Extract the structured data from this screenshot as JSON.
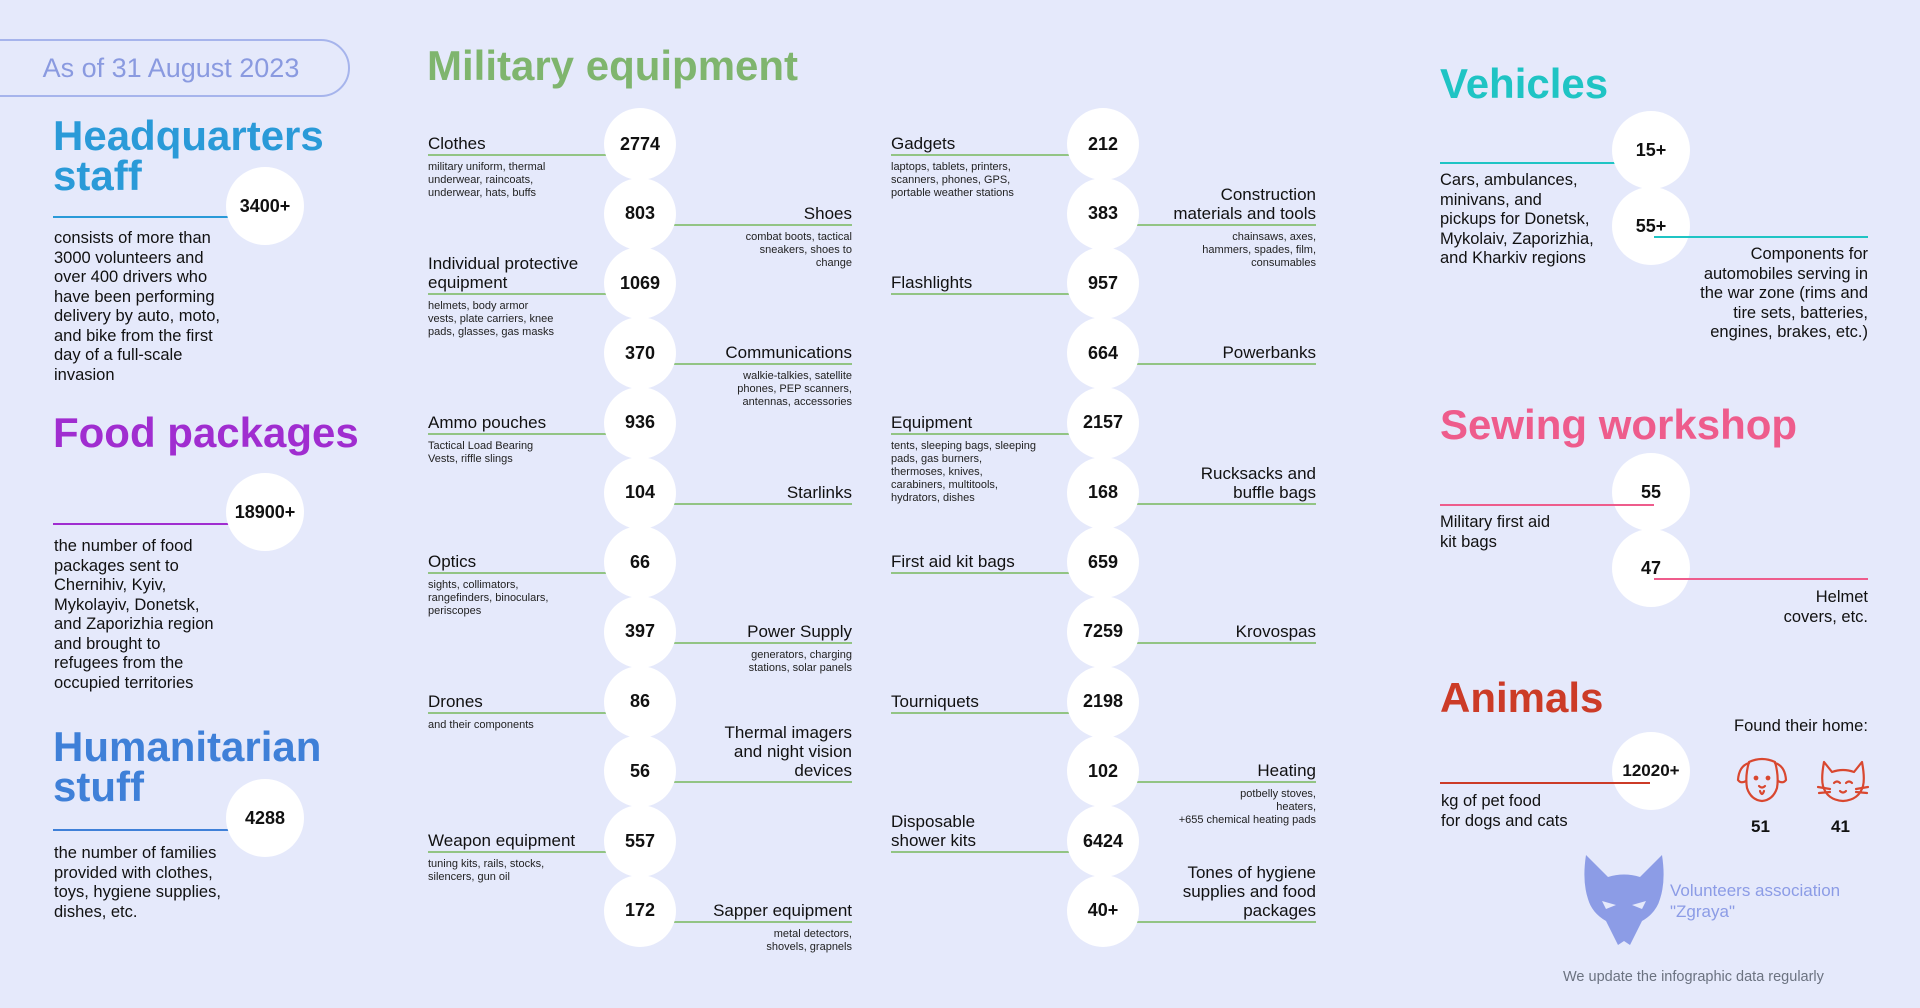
{
  "date_pill": "As of 31 August 2023",
  "hq": {
    "title_l1": "Headquarters",
    "title_l2": "staff",
    "value": "3400+",
    "desc": [
      "consists of more than",
      "3000 volunteers and",
      "over 400 drivers who",
      "have been performing",
      "delivery by auto, moto,",
      "and bike from the first",
      "day of a full-scale",
      "invasion"
    ]
  },
  "food": {
    "title": "Food packages",
    "value": "18900+",
    "desc": [
      "the number of food",
      "packages sent to",
      "Chernihiv, Kyiv,",
      "Mykolayiv, Donetsk,",
      "and Zaporizhia region",
      "and brought to",
      "refugees from the",
      "occupied territories"
    ]
  },
  "hum": {
    "title_l1": "Humanitarian",
    "title_l2": "stuff",
    "value": "4288",
    "desc": [
      "the number of families",
      "provided with clothes,",
      "toys, hygiene supplies,",
      "dishes, etc."
    ]
  },
  "military": {
    "title": "Military equipment",
    "col1": [
      {
        "value": "2774",
        "label": [
          "Clothes"
        ],
        "sub": [
          "military uniform, thermal",
          "underwear, raincoats,",
          "underwear, hats, buffs"
        ],
        "side": "left"
      },
      {
        "value": "803",
        "label": [
          "Shoes"
        ],
        "sub": [
          "combat boots, tactical",
          "sneakers, shoes to",
          "change"
        ],
        "side": "right"
      },
      {
        "value": "1069",
        "label": [
          "Individual protective",
          "equipment"
        ],
        "sub": [
          "helmets, body armor",
          "vests, plate carriers, knee",
          "pads, glasses, gas masks"
        ],
        "side": "left"
      },
      {
        "value": "370",
        "label": [
          "Communications"
        ],
        "sub": [
          "walkie-talkies, satellite",
          "phones, PEP scanners,",
          "antennas, accessories"
        ],
        "side": "right"
      },
      {
        "value": "936",
        "label": [
          "Ammo pouches"
        ],
        "sub": [
          "Tactical Load Bearing",
          "Vests, riffle slings"
        ],
        "side": "left"
      },
      {
        "value": "104",
        "label": [
          "Starlinks"
        ],
        "sub": [],
        "side": "right"
      },
      {
        "value": "66",
        "label": [
          "Optics"
        ],
        "sub": [
          "sights, collimators,",
          "rangefinders, binoculars,",
          "periscopes"
        ],
        "side": "left"
      },
      {
        "value": "397",
        "label": [
          "Power Supply"
        ],
        "sub": [
          "generators, charging",
          "stations, solar panels"
        ],
        "side": "right"
      },
      {
        "value": "86",
        "label": [
          "Drones"
        ],
        "sub": [
          "and their components"
        ],
        "side": "left"
      },
      {
        "value": "56",
        "label": [
          "Thermal imagers",
          "and night vision",
          "devices"
        ],
        "sub": [],
        "side": "right"
      },
      {
        "value": "557",
        "label": [
          "Weapon equipment"
        ],
        "sub": [
          "tuning kits, rails, stocks,",
          "silencers, gun oil"
        ],
        "side": "left"
      },
      {
        "value": "172",
        "label": [
          "Sapper equipment"
        ],
        "sub": [
          "metal detectors,",
          "shovels, grapnels"
        ],
        "side": "right"
      }
    ],
    "col2": [
      {
        "value": "212",
        "label": [
          "Gadgets"
        ],
        "sub": [
          "laptops, tablets, printers,",
          "scanners, phones, GPS,",
          "portable weather stations"
        ],
        "side": "left"
      },
      {
        "value": "383",
        "label": [
          "Construction",
          "materials and tools"
        ],
        "sub": [
          "chainsaws, axes,",
          "hammers, spades, film,",
          "consumables"
        ],
        "side": "right"
      },
      {
        "value": "957",
        "label": [
          "Flashlights"
        ],
        "sub": [],
        "side": "left"
      },
      {
        "value": "664",
        "label": [
          "Powerbanks"
        ],
        "sub": [],
        "side": "right"
      },
      {
        "value": "2157",
        "label": [
          "Equipment"
        ],
        "sub": [
          "tents, sleeping bags, sleeping",
          "pads, gas burners,",
          "thermoses, knives,",
          "carabiners, multitools,",
          "hydrators, dishes"
        ],
        "side": "left"
      },
      {
        "value": "168",
        "label": [
          "Rucksacks and",
          "buffle bags"
        ],
        "sub": [],
        "side": "right"
      },
      {
        "value": "659",
        "label": [
          "First aid kit bags"
        ],
        "sub": [],
        "side": "left"
      },
      {
        "value": "7259",
        "label": [
          "Krovospas"
        ],
        "sub": [],
        "side": "right"
      },
      {
        "value": "2198",
        "label": [
          "Tourniquets"
        ],
        "sub": [],
        "side": "left"
      },
      {
        "value": "102",
        "label": [
          "Heating"
        ],
        "sub": [
          "potbelly stoves,",
          "heaters,",
          "+655 chemical heating pads"
        ],
        "side": "right"
      },
      {
        "value": "6424",
        "label": [
          "Disposable",
          "shower kits"
        ],
        "sub": [],
        "side": "left"
      },
      {
        "value": "40+",
        "label": [
          "Tones of hygiene",
          "supplies and food",
          "packages"
        ],
        "sub": [],
        "side": "right"
      }
    ]
  },
  "vehicles": {
    "title": "Vehicles",
    "v1": "15+",
    "v1_desc": [
      "Cars, ambulances,",
      "minivans, and",
      "pickups for Donetsk,",
      "Mykolaiv, Zaporizhia,",
      "and Kharkiv regions"
    ],
    "v2": "55+",
    "v2_desc": [
      "Components for",
      "automobiles serving in",
      "the war zone (rims and",
      "tire sets, batteries,",
      "engines, brakes, etc.)"
    ]
  },
  "sewing": {
    "title": "Sewing workshop",
    "v1": "55",
    "v1_desc": [
      "Military first aid",
      "kit bags"
    ],
    "v2": "47",
    "v2_desc": [
      "Helmet",
      "covers, etc."
    ]
  },
  "animals": {
    "title": "Animals",
    "value": "12020+",
    "desc": [
      "kg of pet food",
      "for dogs and cats"
    ],
    "found_home": "Found their home:",
    "dogs": "51",
    "cats": "41"
  },
  "footer": {
    "assoc_l1": "Volunteers association",
    "assoc_l2": "\"Zgraya\"",
    "update": "We update the infographic data regularly"
  },
  "colors": {
    "background": "#e5e9fb",
    "military": "#7fb56e",
    "hq": "#2a9ad8",
    "food": "#a02dd0",
    "humanitarian": "#3f80d8",
    "vehicles": "#1fc4c4",
    "sewing": "#ee5c8c",
    "animals": "#cc3b27"
  }
}
